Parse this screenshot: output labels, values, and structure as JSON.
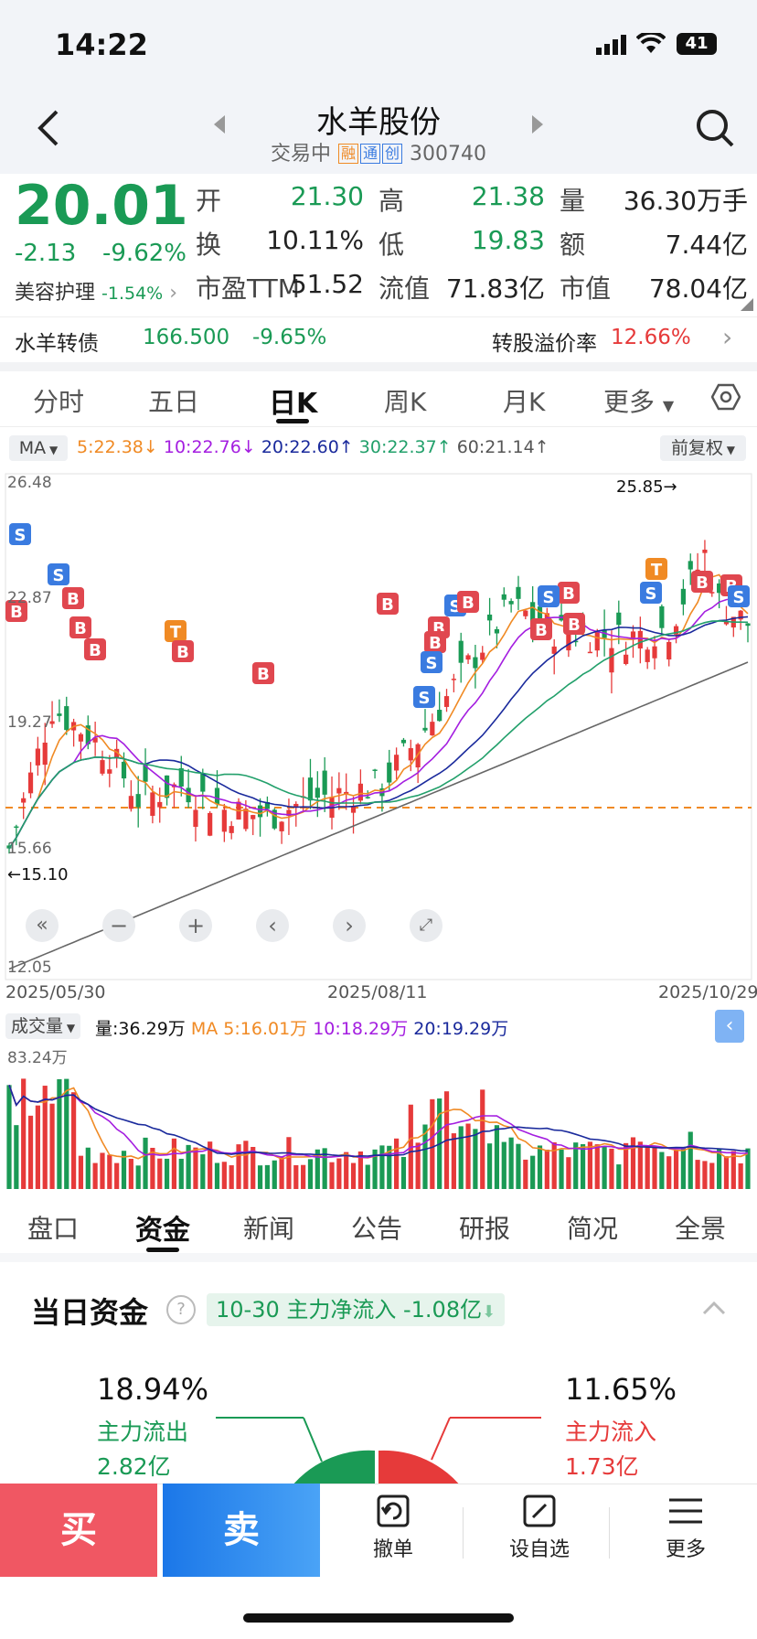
{
  "status": {
    "time": "14:22",
    "battery": "41"
  },
  "header": {
    "title": "水羊股份",
    "trading_status": "交易中",
    "tags": [
      "融",
      "通",
      "创"
    ],
    "code": "300740"
  },
  "quote": {
    "price": "20.01",
    "change": "-2.13",
    "change_pct": "-9.62%",
    "sector_name": "美容护理",
    "sector_pct": "-1.54%",
    "fields": [
      {
        "label": "开",
        "value": "21.30"
      },
      {
        "label": "高",
        "value": "21.38"
      },
      {
        "label": "量",
        "value": "36.30万手"
      },
      {
        "label": "换",
        "value": "10.11%"
      },
      {
        "label": "低",
        "value": "19.83"
      },
      {
        "label": "额",
        "value": "7.44亿"
      },
      {
        "label": "市盈TTM",
        "value": "51.52"
      },
      {
        "label": "流值",
        "value": "71.83亿"
      },
      {
        "label": "市值",
        "value": "78.04亿"
      }
    ]
  },
  "bond": {
    "name": "水羊转债",
    "price": "166.500",
    "pct": "-9.65%",
    "premium_label": "转股溢价率",
    "premium_value": "12.66%"
  },
  "chart_tabs": [
    "分时",
    "五日",
    "日K",
    "周K",
    "月K",
    "更多"
  ],
  "active_chart_tab": "日K",
  "ma_bar": {
    "selector": "MA",
    "ma5": "5:22.38",
    "ma10": "10:22.76",
    "ma20": "20:22.60",
    "ma30": "30:22.37",
    "ma60": "60:21.14",
    "adjust": "前复权"
  },
  "kline": {
    "y_labels": [
      "26.48",
      "22.87",
      "19.27",
      "15.66",
      "12.05"
    ],
    "high_marker": "25.85",
    "low_marker": "15.10",
    "dates": [
      "2025/05/30",
      "2025/08/11",
      "2025/10/29"
    ]
  },
  "volume_bar": {
    "selector": "成交量",
    "vol": "量:36.29万",
    "ma5": "MA 5:16.01万",
    "ma10": "10:18.29万",
    "ma20": "20:19.29万",
    "max_label": "83.24万"
  },
  "bottom_tabs": [
    "盘口",
    "资金",
    "新闻",
    "公告",
    "研报",
    "简况",
    "全景"
  ],
  "active_bottom_tab": "资金",
  "funds": {
    "title": "当日资金",
    "summary": "10-30 主力净流入 -1.08亿",
    "outflow_pct": "18.94%",
    "outflow_label": "主力流出",
    "outflow_value": "2.82亿",
    "inflow_pct": "11.65%",
    "inflow_label": "主力流入",
    "inflow_value": "1.73亿"
  },
  "actions": {
    "buy": "买",
    "sell": "卖",
    "cancel": "撤单",
    "watchlist": "设自选",
    "more": "更多"
  },
  "colors": {
    "up": "#e63a3a",
    "down": "#1a9a55",
    "ma5": "#f08a24",
    "ma10": "#a41ee0",
    "ma20": "#1a2a9c",
    "ma30": "#22a06b",
    "ma60": "#666666"
  }
}
